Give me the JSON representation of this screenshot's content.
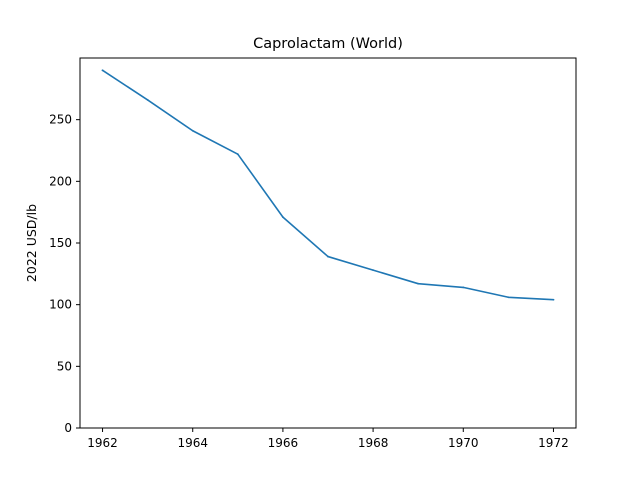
{
  "chart_data": {
    "type": "line",
    "title": "Caprolactam (World)",
    "xlabel": "",
    "ylabel": "2022 USD/lb",
    "x": [
      1962,
      1963,
      1964,
      1965,
      1966,
      1967,
      1968,
      1969,
      1970,
      1971,
      1972
    ],
    "series": [
      {
        "values": [
          290,
          266,
          241,
          222,
          171,
          139,
          128,
          117,
          114,
          106,
          104
        ]
      }
    ],
    "xlim": [
      1961.5,
      1972.5
    ],
    "ylim": [
      0,
      300
    ],
    "xticks": [
      1962,
      1964,
      1966,
      1968,
      1970,
      1972
    ],
    "yticks": [
      0,
      50,
      100,
      150,
      200,
      250
    ],
    "grid": false,
    "line_color": "#1f77b4"
  }
}
